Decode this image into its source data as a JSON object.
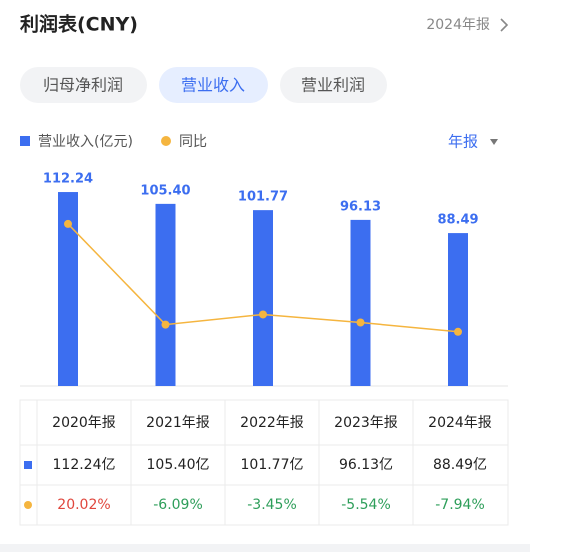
{
  "header": {
    "title": "利润表(CNY)",
    "period": "2024年报"
  },
  "tabs": [
    "归母净利润",
    "营业收入",
    "营业利润"
  ],
  "period_selector": "年报",
  "chart_data": {
    "type": "bar",
    "categories": [
      "2020年报",
      "2021年报",
      "2022年报",
      "2023年报",
      "2024年报"
    ],
    "series": [
      {
        "name": "营业收入(亿元)",
        "color": "#3c6ef0",
        "values": [
          112.24,
          105.4,
          101.77,
          96.13,
          88.49
        ],
        "value_labels": [
          "112.24",
          "105.40",
          "101.77",
          "96.13",
          "88.49"
        ]
      },
      {
        "name": "同比",
        "color": "#f5b53f",
        "type": "line",
        "axis": "y2",
        "values": [
          20.02,
          -6.09,
          -3.45,
          -5.54,
          -7.94
        ]
      }
    ],
    "ylim": [
      0,
      125
    ],
    "y2lim": [
      -22,
      34
    ]
  },
  "table": {
    "rows": [
      [
        "112.24亿",
        "105.40亿",
        "101.77亿",
        "96.13亿",
        "88.49亿"
      ],
      [
        "20.02%",
        "-6.09%",
        "-3.45%",
        "-5.54%",
        "-7.94%"
      ]
    ]
  }
}
